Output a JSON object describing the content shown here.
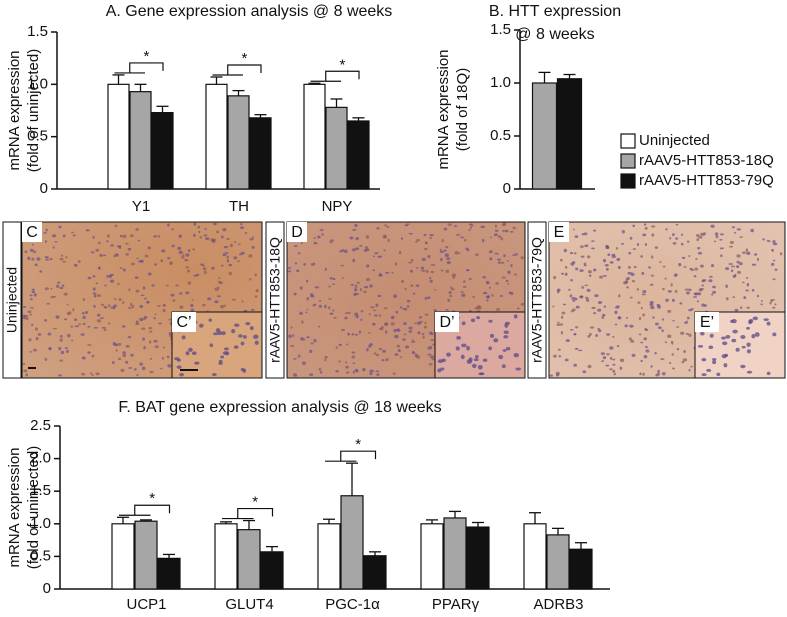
{
  "chart_data": [
    {
      "type": "bar",
      "title": "A. Gene expression analysis @ 8 weeks",
      "ylabel": [
        "mRNA expression",
        "(fold of uninjected)"
      ],
      "categories": [
        "Y1",
        "TH",
        "NPY"
      ],
      "series": [
        {
          "name": "Uninjected",
          "color": "#ffffff",
          "values": [
            1.0,
            1.0,
            1.0
          ],
          "errors": [
            0.09,
            0.07,
            0.01
          ]
        },
        {
          "name": "rAAV5-HTT853-18Q",
          "color": "#a6a6a6",
          "values": [
            0.93,
            0.89,
            0.78
          ],
          "errors": [
            0.07,
            0.05,
            0.08
          ]
        },
        {
          "name": "rAAV5-HTT853-79Q",
          "color": "#111111",
          "values": [
            0.73,
            0.68,
            0.65
          ],
          "errors": [
            0.06,
            0.03,
            0.03
          ]
        }
      ],
      "annotations": [
        "*",
        "*",
        "*"
      ],
      "ylim": [
        0,
        1.5
      ],
      "yticks": [
        0,
        0.5,
        {
          "value": 1,
          "label": "1.0"
        },
        1.5
      ]
    },
    {
      "type": "bar",
      "title": [
        "B. HTT expression",
        "@ 8 weeks"
      ],
      "ylabel": [
        "mRNA expression",
        "(fold of 18Q)"
      ],
      "series": [
        {
          "color": "#a6a6a6",
          "values": [
            1.0
          ],
          "errors": [
            0.1
          ]
        },
        {
          "color": "#111111",
          "values": [
            1.04
          ],
          "errors": [
            0.04
          ]
        }
      ],
      "ylim": [
        0,
        1.5
      ],
      "yticks": [
        0,
        0.5,
        {
          "value": 1,
          "label": "1.0"
        },
        1.5
      ]
    },
    {
      "type": "bar",
      "title": "F. BAT gene expression analysis @ 18 weeks",
      "ylabel": [
        "mRNA expression",
        "(fold of uninjected)"
      ],
      "categories": [
        "UCP1",
        "GLUT4",
        "PGC-1α",
        "PPARγ",
        "ADRB3"
      ],
      "series": [
        {
          "color": "#ffffff",
          "values": [
            1.0,
            1.0,
            1.0,
            1.0,
            1.0
          ],
          "errors": [
            0.1,
            0.03,
            0.07,
            0.06,
            0.17
          ]
        },
        {
          "color": "#a6a6a6",
          "values": [
            1.04,
            0.91,
            1.43,
            1.09,
            0.83
          ],
          "errors": [
            0.02,
            0.14,
            0.5,
            0.1,
            0.1
          ]
        },
        {
          "color": "#111111",
          "values": [
            0.47,
            0.57,
            0.51,
            0.95,
            0.61
          ],
          "errors": [
            0.06,
            0.08,
            0.06,
            0.07,
            0.1
          ]
        }
      ],
      "annotations": [
        "*",
        "*",
        "*",
        null,
        null
      ],
      "ylim": [
        0,
        2.5
      ],
      "yticks": [
        0,
        0.5,
        {
          "value": 1,
          "label": "1.0"
        },
        1.5,
        {
          "value": 2,
          "label": "2.0"
        },
        2.5
      ]
    }
  ],
  "images": [
    {
      "label": "C",
      "inset_label": "C’",
      "side_label": "Uninjected"
    },
    {
      "label": "D",
      "inset_label": "D’",
      "side_label": "rAAV5-HTT853-18Q"
    },
    {
      "label": "E",
      "inset_label": "E’",
      "side_label": "rAAV5-HTT853-79Q"
    }
  ]
}
